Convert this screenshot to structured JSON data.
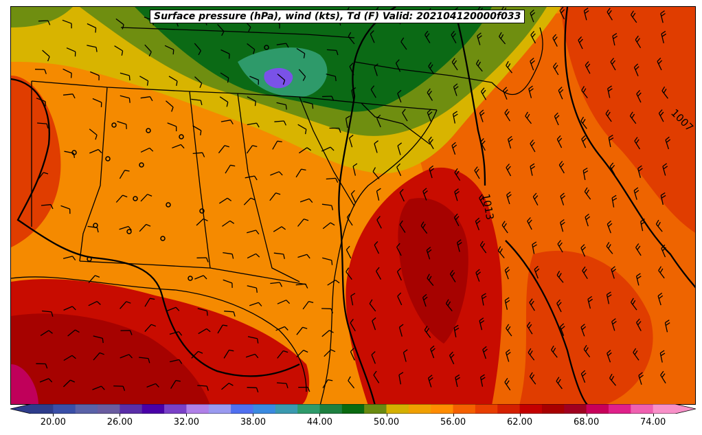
{
  "title": "Surface pressure (hPa), wind (kts), Td (F) Valid: 202104120000f033",
  "colorbar": {
    "min": 18,
    "max": 76,
    "step": 2,
    "tick_labels": [
      "20.00",
      "26.00",
      "32.00",
      "38.00",
      "44.00",
      "50.00",
      "56.00",
      "62.00",
      "68.00",
      "74.00"
    ],
    "tick_values": [
      20,
      26,
      32,
      38,
      44,
      50,
      56,
      62,
      68,
      74
    ],
    "colors": [
      "#2e3c8c",
      "#3a4fa8",
      "#5a62a8",
      "#6a5ca0",
      "#5a2ea8",
      "#4a00a8",
      "#7a40c8",
      "#b080e8",
      "#9a9af0",
      "#5070f0",
      "#3a8ae0",
      "#3a9ab0",
      "#2e9a6a",
      "#1e8040",
      "#0a6a10",
      "#6a8a10",
      "#d4b000",
      "#f0a000",
      "#ff8c00",
      "#f46000",
      "#e83e00",
      "#d42000",
      "#c40000",
      "#a80000",
      "#a00020",
      "#c8005a",
      "#e0208a",
      "#f060b0",
      "#f890c8"
    ],
    "extend_min_color": "#2e3c8c",
    "extend_max_color": "#f890c8"
  },
  "isobar_labels": [
    "1013",
    "1007"
  ],
  "colors": {
    "dry_green": "#0b6a15",
    "olive": "#6f8e10",
    "yellow": "#d8b400",
    "orange": "#f58a00",
    "deep_orange": "#ee6400",
    "red_orange": "#e03d00",
    "red": "#c80c00",
    "dark_red": "#a60200",
    "magenta": "#c0005a",
    "purple": "#7a52e8",
    "teal": "#2e9a6a"
  }
}
